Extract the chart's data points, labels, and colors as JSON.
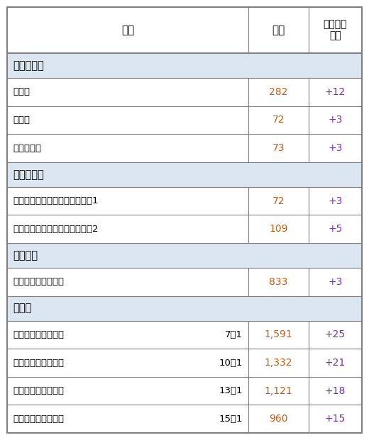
{
  "header": [
    "項目",
    "点数",
    "前回改定\n対比"
  ],
  "rows": [
    {
      "label": "初・再診料",
      "col2": "",
      "points": "",
      "change": "",
      "is_section": true
    },
    {
      "label": "初診料",
      "col2": "",
      "points": "282",
      "change": "+12",
      "is_section": false
    },
    {
      "label": "再診料",
      "col2": "",
      "points": "72",
      "change": "+3",
      "is_section": false
    },
    {
      "label": "外来診療料",
      "col2": "",
      "points": "73",
      "change": "+3",
      "is_section": false
    },
    {
      "label": "医学管理等",
      "col2": "",
      "points": "",
      "change": "",
      "is_section": true
    },
    {
      "label": "外来リハビリテーション診療料1",
      "col2": "",
      "points": "72",
      "change": "+3",
      "is_section": false
    },
    {
      "label": "外来リハビリテーション診療料2",
      "col2": "",
      "points": "109",
      "change": "+5",
      "is_section": false
    },
    {
      "label": "在宅医療",
      "col2": "",
      "points": "",
      "change": "",
      "is_section": true
    },
    {
      "label": "在宅患者訪問診療料",
      "col2": "",
      "points": "833",
      "change": "+3",
      "is_section": false
    },
    {
      "label": "入院料",
      "col2": "",
      "points": "",
      "change": "",
      "is_section": true
    },
    {
      "label": "一般病棟入院基本料",
      "col2": "7対1",
      "points": "1,591",
      "change": "+25",
      "is_section": false
    },
    {
      "label": "一般病棟入院基本料",
      "col2": "10対1",
      "points": "1,332",
      "change": "+21",
      "is_section": false
    },
    {
      "label": "一般病棟入院基本料",
      "col2": "13対1",
      "points": "1,121",
      "change": "+18",
      "is_section": false
    },
    {
      "label": "一般病棟入院基本料",
      "col2": "15対1",
      "points": "960",
      "change": "+15",
      "is_section": false
    }
  ],
  "colors": {
    "header_bg": "#ffffff",
    "section_bg": "#dce6f1",
    "data_bg": "#ffffff",
    "border": "#808080",
    "text_normal": "#000000",
    "text_points": "#c55a11",
    "text_change": "#7030a0"
  },
  "figsize": [
    5.2,
    6.21
  ],
  "dpi": 100
}
